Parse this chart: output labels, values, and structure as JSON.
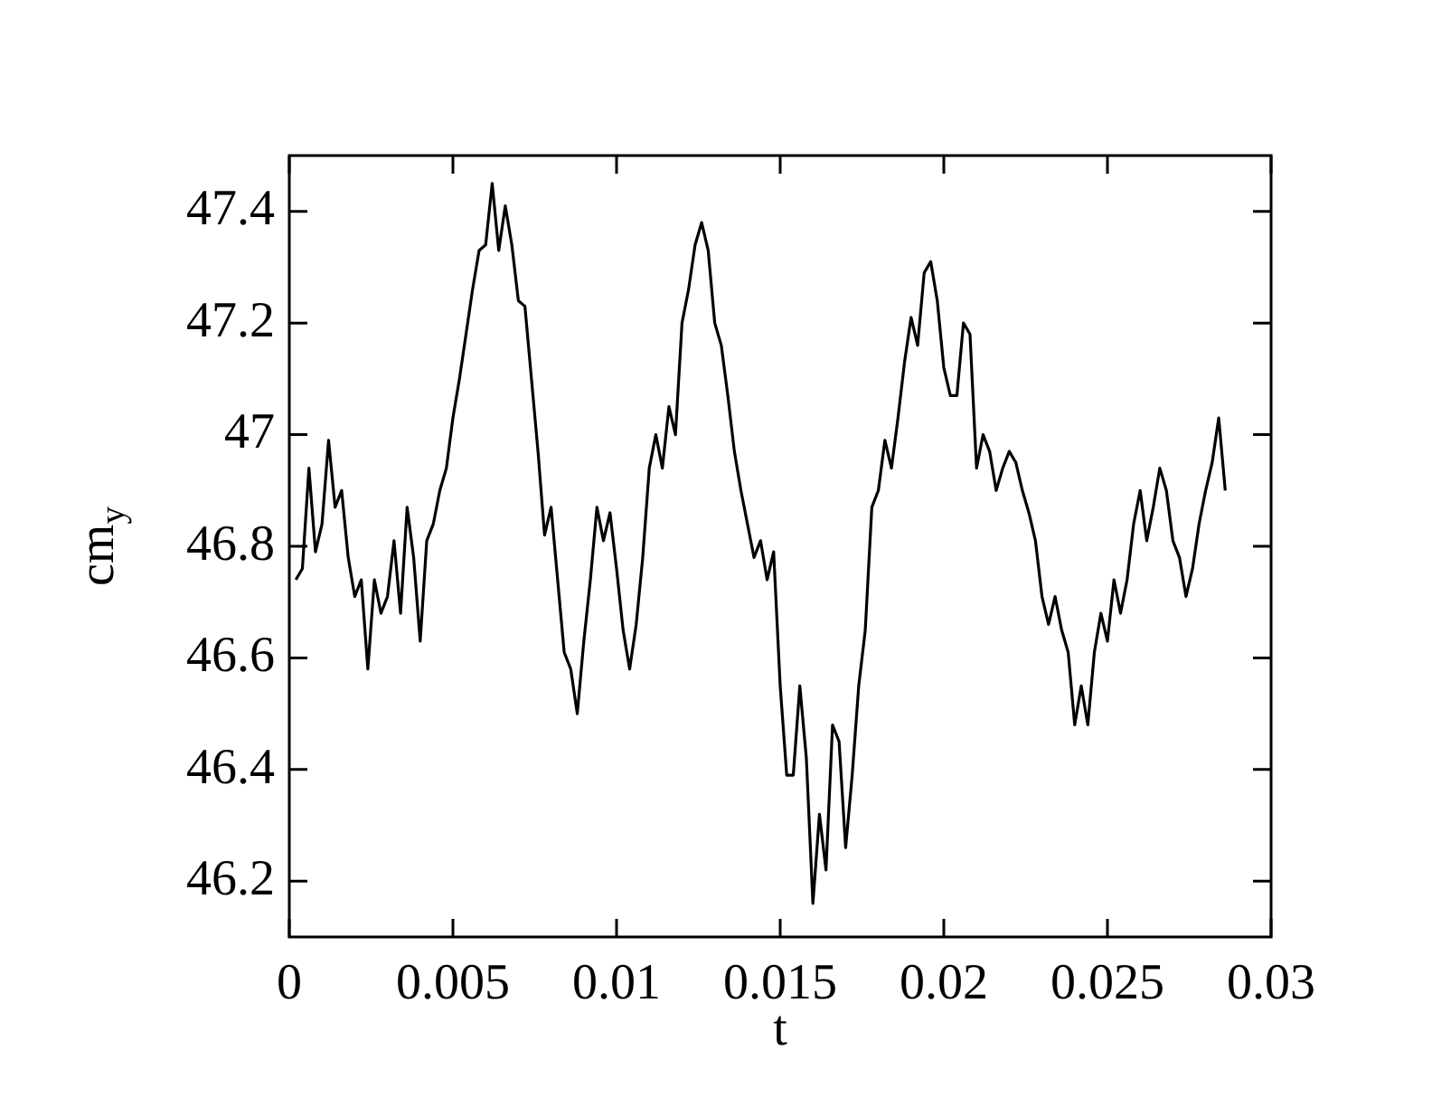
{
  "chart_data": {
    "type": "line",
    "xlabel": "t",
    "ylabel": "cm$_{y}$",
    "legend": false,
    "grid": false,
    "marker": "none",
    "xlim": [
      0,
      0.03
    ],
    "xticks": [
      0,
      0.005,
      0.01,
      0.015,
      0.02,
      0.025,
      0.03
    ],
    "ylim": [
      46.1,
      47.5
    ],
    "yticks": [
      46.2,
      46.4,
      46.6,
      46.8,
      47,
      47.2,
      47.4
    ],
    "x": [
      0.0002,
      0.0004,
      0.0006,
      0.0008,
      0.001,
      0.0012,
      0.0014,
      0.0016,
      0.0018,
      0.002,
      0.0022,
      0.0024,
      0.0026,
      0.0028,
      0.003,
      0.0032,
      0.0034,
      0.0036,
      0.0038,
      0.004,
      0.0042,
      0.0044,
      0.0046,
      0.0048,
      0.005,
      0.0052,
      0.0054,
      0.0056,
      0.0058,
      0.006,
      0.0062,
      0.0064,
      0.0066,
      0.0068,
      0.007,
      0.0072,
      0.0074,
      0.0076,
      0.0078,
      0.008,
      0.0082,
      0.0084,
      0.0086,
      0.0088,
      0.009,
      0.0092,
      0.0094,
      0.0096,
      0.0098,
      0.01,
      0.0102,
      0.0104,
      0.0106,
      0.0108,
      0.011,
      0.0112,
      0.0114,
      0.0116,
      0.0118,
      0.012,
      0.0122,
      0.0124,
      0.0126,
      0.0128,
      0.013,
      0.0132,
      0.0134,
      0.0136,
      0.0138,
      0.014,
      0.0142,
      0.0144,
      0.0146,
      0.0148,
      0.015,
      0.0152,
      0.0154,
      0.0156,
      0.0158,
      0.016,
      0.0162,
      0.0164,
      0.0166,
      0.0168,
      0.017,
      0.0172,
      0.0174,
      0.0176,
      0.0178,
      0.018,
      0.0182,
      0.0184,
      0.0186,
      0.0188,
      0.019,
      0.0192,
      0.0194,
      0.0196,
      0.0198,
      0.02,
      0.0202,
      0.0204,
      0.0206,
      0.0208,
      0.021,
      0.0212,
      0.0214,
      0.0216,
      0.0218,
      0.022,
      0.0222,
      0.0224,
      0.0226,
      0.0228,
      0.023,
      0.0232,
      0.0234,
      0.0236,
      0.0238,
      0.024,
      0.0242,
      0.0244,
      0.0246,
      0.0248,
      0.025,
      0.0252,
      0.0254,
      0.0256,
      0.0258,
      0.026,
      0.0262,
      0.0264,
      0.0266,
      0.0268,
      0.027,
      0.0272,
      0.0274,
      0.0276,
      0.0278,
      0.028,
      0.0282,
      0.0284,
      0.0286
    ],
    "series": [
      {
        "color": "#000000",
        "values": [
          46.74,
          46.76,
          46.94,
          46.79,
          46.84,
          46.99,
          46.87,
          46.9,
          46.78,
          46.71,
          46.74,
          46.58,
          46.74,
          46.68,
          46.71,
          46.81,
          46.68,
          46.87,
          46.78,
          46.63,
          46.81,
          46.84,
          46.9,
          46.94,
          47.03,
          47.1,
          47.18,
          47.26,
          47.33,
          47.34,
          47.45,
          47.33,
          47.41,
          47.34,
          47.24,
          47.23,
          47.1,
          46.97,
          46.82,
          46.87,
          46.74,
          46.61,
          46.58,
          46.5,
          46.63,
          46.74,
          46.87,
          46.81,
          46.86,
          46.76,
          46.65,
          46.58,
          46.66,
          46.78,
          46.94,
          47.0,
          46.94,
          47.05,
          47.0,
          47.2,
          47.26,
          47.34,
          47.38,
          47.33,
          47.2,
          47.16,
          47.07,
          46.97,
          46.9,
          46.84,
          46.78,
          46.81,
          46.74,
          46.79,
          46.55,
          46.39,
          46.39,
          46.55,
          46.42,
          46.16,
          46.32,
          46.22,
          46.48,
          46.45,
          46.26,
          46.39,
          46.55,
          46.65,
          46.87,
          46.9,
          46.99,
          46.94,
          47.03,
          47.13,
          47.21,
          47.16,
          47.29,
          47.31,
          47.24,
          47.12,
          47.07,
          47.07,
          47.2,
          47.18,
          46.94,
          47.0,
          46.97,
          46.9,
          46.94,
          46.97,
          46.95,
          46.9,
          46.86,
          46.81,
          46.71,
          46.66,
          46.71,
          46.65,
          46.61,
          46.48,
          46.55,
          46.48,
          46.61,
          46.68,
          46.63,
          46.74,
          46.68,
          46.74,
          46.84,
          46.9,
          46.81,
          46.87,
          46.94,
          46.9,
          46.81,
          46.78,
          46.71,
          46.76,
          46.84,
          46.9,
          46.95,
          47.03,
          46.9
        ]
      }
    ]
  }
}
